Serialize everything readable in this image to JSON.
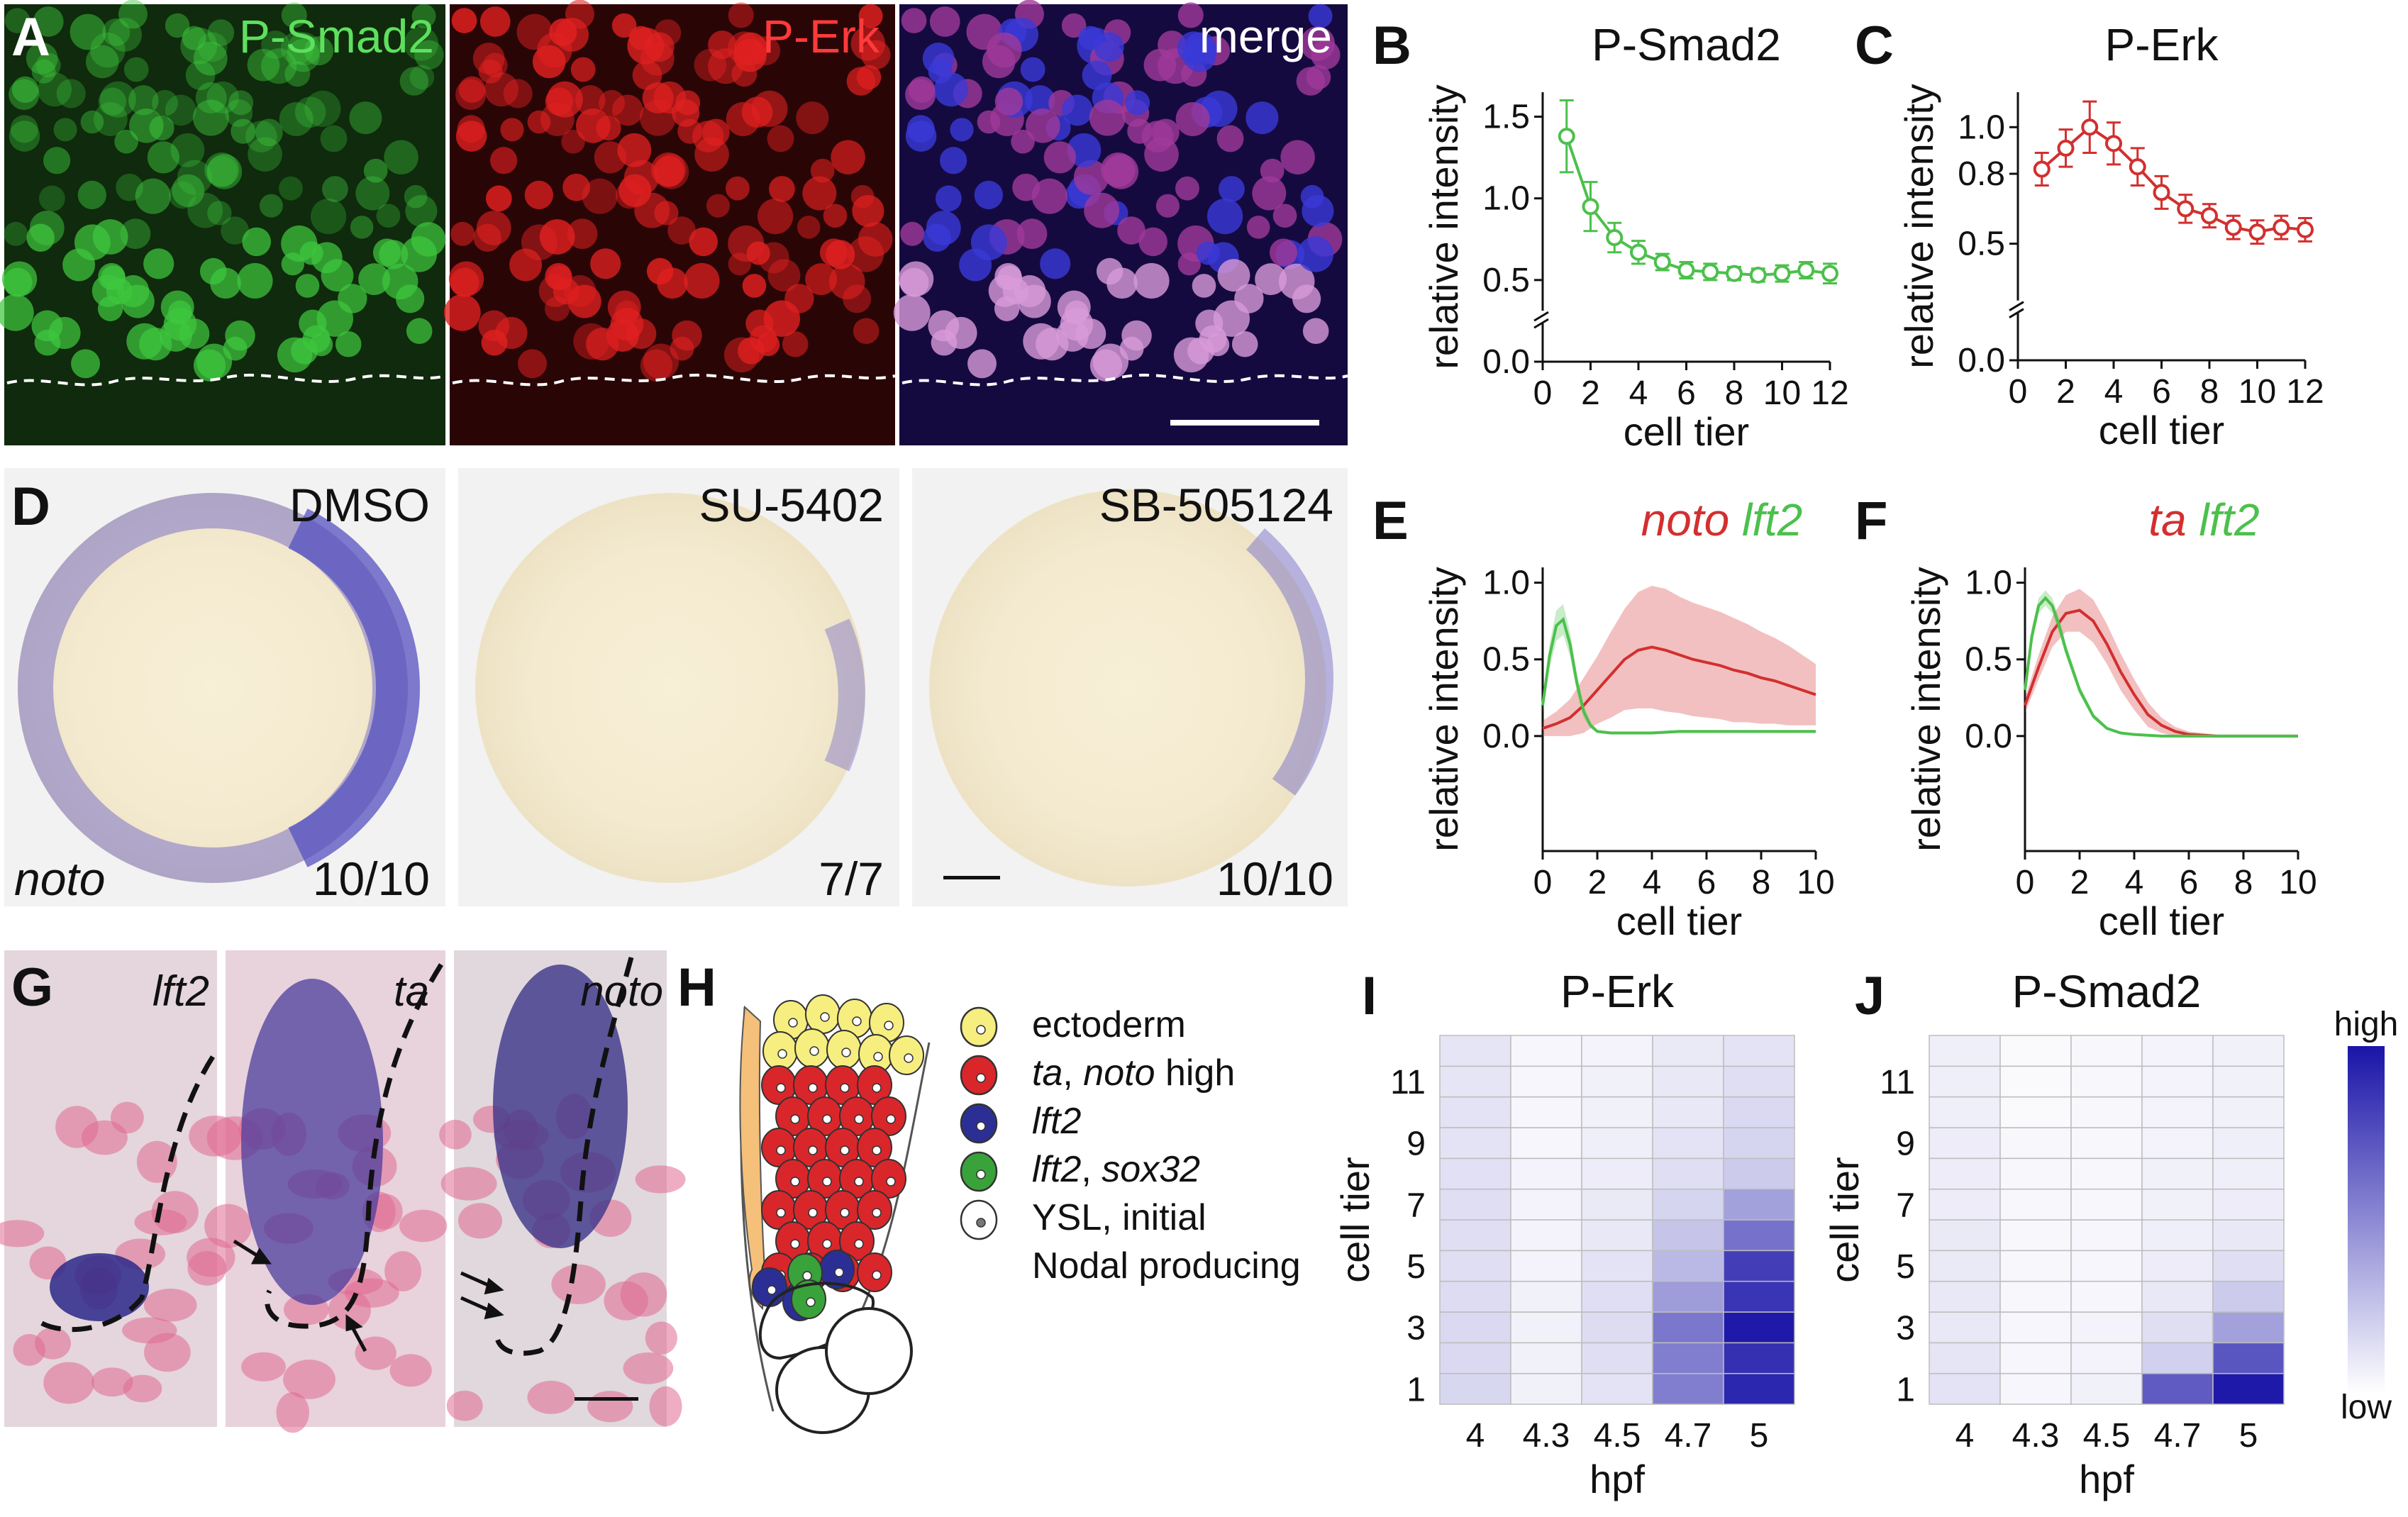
{
  "panel_letters": {
    "A": "A",
    "B": "B",
    "C": "C",
    "D": "D",
    "E": "E",
    "F": "F",
    "G": "G",
    "H": "H",
    "I": "I",
    "J": "J"
  },
  "panel_A": {
    "titles": [
      "P-Smad2",
      "P-Erk",
      "merge"
    ],
    "colors": [
      "#5ee05e",
      "#ff3a3a",
      "#ffffff"
    ]
  },
  "panel_D": {
    "conditions": [
      "DMSO",
      "SU-5402",
      "SB-505124"
    ],
    "counts": [
      "10/10",
      "7/7",
      "10/10"
    ],
    "gene": "noto"
  },
  "panel_G": {
    "genes": [
      "lft2",
      "ta",
      "noto"
    ]
  },
  "panel_H": {
    "legend": [
      {
        "italic": "",
        "plain": "ectoderm",
        "color": "#f7ee80"
      },
      {
        "italic": "ta",
        "plain": ", ",
        "italic2": "noto",
        "plain2": " high",
        "color": "#d9262b"
      },
      {
        "italic": "lft2",
        "plain": "",
        "color": "#2b2f95"
      },
      {
        "italic": "lft2",
        "plain": ", ",
        "italic2": "sox32",
        "plain2": "",
        "color": "#3aa23a"
      },
      {
        "italic": "",
        "plain": "YSL, initial",
        "color": "#ffffff"
      },
      {
        "italic": "",
        "plain": "Nodal producing",
        "color": ""
      }
    ]
  },
  "colors": {
    "green": "#4cc04c",
    "red": "#d32f2f",
    "heat_high": "#1a14a8",
    "heat_low": "#ffffff"
  },
  "chart_data": [
    {
      "panel": "B",
      "type": "line",
      "title": "P-Smad2",
      "xlabel": "cell tier",
      "ylabel": "relative intensity",
      "xticks": [
        "0",
        "2",
        "4",
        "6",
        "8",
        "10",
        "12"
      ],
      "yticks": [
        "0.0",
        "0.5",
        "1.0",
        "1.5"
      ],
      "x": [
        1,
        2,
        3,
        4,
        5,
        6,
        7,
        8,
        9,
        10,
        11,
        12
      ],
      "series": [
        {
          "values": [
            1.38,
            0.95,
            0.76,
            0.67,
            0.61,
            0.56,
            0.55,
            0.54,
            0.53,
            0.54,
            0.56,
            0.54
          ],
          "errors": [
            0.22,
            0.15,
            0.09,
            0.07,
            0.05,
            0.05,
            0.05,
            0.04,
            0.04,
            0.05,
            0.05,
            0.06
          ]
        }
      ]
    },
    {
      "panel": "C",
      "type": "line",
      "title": "P-Erk",
      "xlabel": "cell tier",
      "ylabel": "relative intensity",
      "xticks": [
        "0",
        "2",
        "4",
        "6",
        "8",
        "10",
        "12"
      ],
      "yticks": [
        "0.0",
        "0.5",
        "0.8",
        "1.0"
      ],
      "x": [
        1,
        2,
        3,
        4,
        5,
        6,
        7,
        8,
        9,
        10,
        11,
        12
      ],
      "series": [
        {
          "values": [
            0.82,
            0.91,
            1.0,
            0.93,
            0.83,
            0.72,
            0.65,
            0.62,
            0.57,
            0.55,
            0.57,
            0.56
          ],
          "errors": [
            0.07,
            0.08,
            0.11,
            0.09,
            0.08,
            0.07,
            0.06,
            0.05,
            0.05,
            0.05,
            0.05,
            0.05
          ]
        }
      ]
    },
    {
      "panel": "E",
      "type": "line",
      "title_italic": [
        "noto",
        "lft2"
      ],
      "xlabel": "cell tier",
      "ylabel": "relative intensity",
      "xticks": [
        "0",
        "2",
        "4",
        "6",
        "8",
        "10"
      ],
      "yticks": [
        "0.0",
        "0.5",
        "1.0"
      ],
      "series": [
        {
          "gene": "noto",
          "color": "red",
          "x": [
            0,
            0.5,
            1,
            1.5,
            2,
            2.5,
            3,
            3.5,
            4,
            4.5,
            5,
            5.5,
            6,
            6.5,
            7,
            7.5,
            8,
            8.5,
            9,
            9.5,
            10
          ],
          "values": [
            0.05,
            0.08,
            0.12,
            0.2,
            0.3,
            0.4,
            0.5,
            0.56,
            0.58,
            0.56,
            0.53,
            0.5,
            0.48,
            0.46,
            0.43,
            0.41,
            0.38,
            0.36,
            0.33,
            0.3,
            0.27
          ],
          "band": [
            0.05,
            0.08,
            0.12,
            0.18,
            0.22,
            0.28,
            0.33,
            0.38,
            0.4,
            0.4,
            0.38,
            0.37,
            0.36,
            0.35,
            0.34,
            0.32,
            0.3,
            0.28,
            0.26,
            0.23,
            0.2
          ]
        },
        {
          "gene": "lft2",
          "color": "green",
          "x": [
            0,
            0.25,
            0.5,
            0.75,
            1,
            1.25,
            1.5,
            1.75,
            2,
            2.5,
            3,
            4,
            5,
            6,
            7,
            8,
            9,
            10
          ],
          "values": [
            0.2,
            0.52,
            0.72,
            0.76,
            0.6,
            0.35,
            0.16,
            0.07,
            0.03,
            0.02,
            0.02,
            0.02,
            0.03,
            0.03,
            0.03,
            0.03,
            0.03,
            0.03
          ],
          "band": [
            0.05,
            0.08,
            0.1,
            0.1,
            0.08,
            0.06,
            0.04,
            0.02,
            0.01,
            0.01,
            0.01,
            0.01,
            0.01,
            0.01,
            0.01,
            0.01,
            0.01,
            0.01
          ]
        }
      ]
    },
    {
      "panel": "F",
      "type": "line",
      "title_italic": [
        "ta",
        "lft2"
      ],
      "xlabel": "cell tier",
      "ylabel": "relative intensity",
      "xticks": [
        "0",
        "2",
        "4",
        "6",
        "8",
        "10"
      ],
      "yticks": [
        "0.0",
        "0.5",
        "1.0"
      ],
      "series": [
        {
          "gene": "ta",
          "color": "red",
          "x": [
            0,
            0.5,
            1,
            1.5,
            2,
            2.5,
            3,
            3.5,
            4,
            4.5,
            5,
            5.5,
            6,
            7,
            8,
            9,
            10
          ],
          "values": [
            0.2,
            0.45,
            0.68,
            0.8,
            0.82,
            0.75,
            0.6,
            0.42,
            0.27,
            0.14,
            0.07,
            0.03,
            0.01,
            0.0,
            0.0,
            0.0,
            0.0
          ],
          "band": [
            0.05,
            0.08,
            0.1,
            0.12,
            0.14,
            0.14,
            0.13,
            0.12,
            0.1,
            0.08,
            0.05,
            0.03,
            0.02,
            0.01,
            0.0,
            0.0,
            0.0
          ]
        },
        {
          "gene": "lft2",
          "color": "green",
          "x": [
            0,
            0.25,
            0.5,
            0.75,
            1,
            1.25,
            1.5,
            2,
            2.5,
            3,
            3.5,
            4,
            5,
            6,
            7,
            8,
            9,
            10
          ],
          "values": [
            0.3,
            0.65,
            0.85,
            0.9,
            0.85,
            0.72,
            0.56,
            0.3,
            0.13,
            0.05,
            0.02,
            0.01,
            0.0,
            0.0,
            0.0,
            0.0,
            0.0,
            0.0
          ],
          "band": [
            0.05,
            0.06,
            0.05,
            0.05,
            0.05,
            0.05,
            0.04,
            0.03,
            0.02,
            0.01,
            0.0,
            0.0,
            0.0,
            0.0,
            0.0,
            0.0,
            0.0,
            0.0
          ]
        }
      ]
    },
    {
      "panel": "I",
      "type": "heatmap",
      "title": "P-Erk",
      "xlabel": "hpf",
      "ylabel": "cell tier",
      "x": [
        "4",
        "4.3",
        "4.5",
        "4.7",
        "5"
      ],
      "yticks": [
        "1",
        "3",
        "5",
        "7",
        "9",
        "11"
      ],
      "legend_high": "high",
      "legend_low": "low",
      "values": [
        [
          0.17,
          0.06,
          0.12,
          0.55,
          0.92
        ],
        [
          0.16,
          0.06,
          0.14,
          0.55,
          0.88
        ],
        [
          0.16,
          0.06,
          0.15,
          0.58,
          0.98
        ],
        [
          0.15,
          0.06,
          0.14,
          0.42,
          0.86
        ],
        [
          0.14,
          0.05,
          0.12,
          0.3,
          0.82
        ],
        [
          0.14,
          0.05,
          0.1,
          0.25,
          0.6
        ],
        [
          0.14,
          0.05,
          0.09,
          0.18,
          0.4
        ],
        [
          0.13,
          0.05,
          0.08,
          0.14,
          0.22
        ],
        [
          0.12,
          0.04,
          0.07,
          0.12,
          0.18
        ],
        [
          0.12,
          0.04,
          0.06,
          0.1,
          0.16
        ],
        [
          0.11,
          0.04,
          0.06,
          0.1,
          0.14
        ],
        [
          0.11,
          0.04,
          0.05,
          0.09,
          0.12
        ]
      ]
    },
    {
      "panel": "J",
      "type": "heatmap",
      "title": "P-Smad2",
      "xlabel": "hpf",
      "ylabel": "cell tier",
      "x": [
        "4",
        "4.3",
        "4.5",
        "4.7",
        "5"
      ],
      "yticks": [
        "1",
        "3",
        "5",
        "7",
        "9",
        "11"
      ],
      "values": [
        [
          0.12,
          0.04,
          0.06,
          0.7,
          0.98
        ],
        [
          0.11,
          0.04,
          0.05,
          0.2,
          0.72
        ],
        [
          0.1,
          0.04,
          0.05,
          0.14,
          0.4
        ],
        [
          0.1,
          0.03,
          0.04,
          0.1,
          0.22
        ],
        [
          0.09,
          0.03,
          0.04,
          0.08,
          0.14
        ],
        [
          0.09,
          0.03,
          0.04,
          0.07,
          0.1
        ],
        [
          0.08,
          0.03,
          0.03,
          0.06,
          0.08
        ],
        [
          0.08,
          0.03,
          0.03,
          0.06,
          0.07
        ],
        [
          0.08,
          0.03,
          0.03,
          0.05,
          0.07
        ],
        [
          0.07,
          0.02,
          0.03,
          0.05,
          0.06
        ],
        [
          0.07,
          0.02,
          0.03,
          0.05,
          0.06
        ],
        [
          0.07,
          0.02,
          0.03,
          0.05,
          0.06
        ]
      ]
    }
  ]
}
